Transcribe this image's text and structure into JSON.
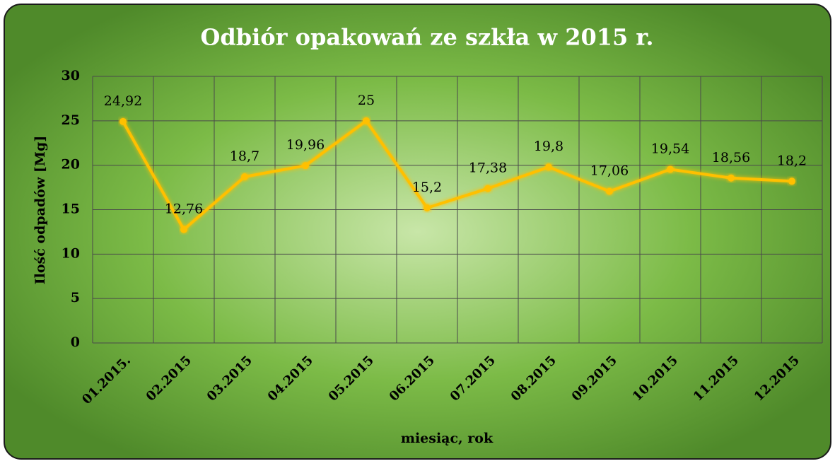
{
  "chart_data": {
    "type": "line",
    "title": "Odbiór opakowań ze szkła w 2015 r.",
    "x_label": "miesiąc, rok",
    "y_label": "Ilość odpadów [Mg]",
    "categories": [
      "01.2015.",
      "02.2015",
      "03.2015",
      "04.2015",
      "05.2015",
      "06.2015",
      "07.2015",
      "08.2015",
      "09.2015",
      "10.2015",
      "11.2015",
      "12.2015"
    ],
    "values": [
      24.92,
      12.76,
      18.7,
      19.96,
      25,
      15.2,
      17.38,
      19.8,
      17.06,
      19.54,
      18.56,
      18.2
    ],
    "value_labels": [
      "24,92",
      "12,76",
      "18,7",
      "19,96",
      "25",
      "15,2",
      "17,38",
      "19,8",
      "17,06",
      "19,54",
      "18,56",
      "18,2"
    ],
    "color": "#ffc000",
    "ylim": [
      0,
      30
    ],
    "yticks": [
      0,
      5,
      10,
      15,
      20,
      25,
      30
    ],
    "grid": true
  }
}
